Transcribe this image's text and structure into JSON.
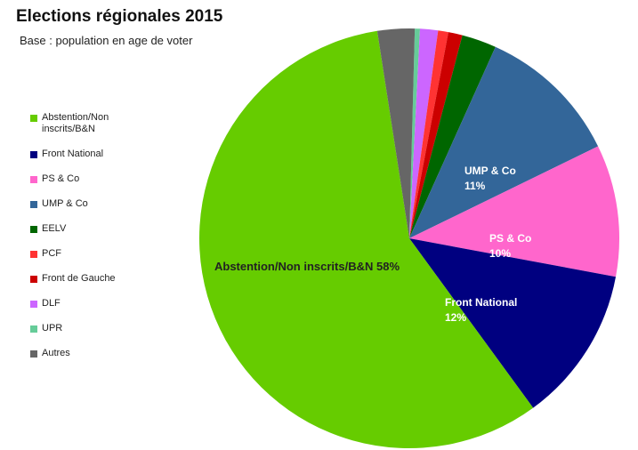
{
  "chart_data": {
    "type": "pie",
    "title": "Elections régionales 2015",
    "subtitle": "Base : population en age de voter",
    "slices": [
      {
        "name": "Abstention/Non inscrits/B&N",
        "legend_label": "Abstention/Non inscrits/B&N",
        "value": 58.4,
        "color": "#66cc00",
        "label_line1": "Abstention/Non inscrits/B&N 58%",
        "label_line2": "",
        "label_color": "#222222"
      },
      {
        "name": "Front National",
        "legend_label": "Front National",
        "value": 12.2,
        "color": "#000080",
        "label_line1": "Front National",
        "label_line2": "12%",
        "label_color": "#ffffff"
      },
      {
        "name": "PS & Co",
        "legend_label": "PS & Co",
        "value": 10.3,
        "color": "#ff66cc",
        "label_line1": "PS & Co",
        "label_line2": "10%",
        "label_color": "#ffffff"
      },
      {
        "name": "UMP & Co",
        "legend_label": "UMP & Co",
        "value": 11.2,
        "color": "#336699",
        "label_line1": "UMP & Co",
        "label_line2": "11%",
        "label_color": "#ffffff"
      },
      {
        "name": "EELV",
        "legend_label": "EELV",
        "value": 2.7,
        "color": "#006600",
        "label_line1": "",
        "label_line2": "",
        "label_color": "#ffffff"
      },
      {
        "name": "PCF",
        "legend_label": "PCF",
        "value": 0.8,
        "color": "#ff3333",
        "label_line1": "",
        "label_line2": "",
        "label_color": "#ffffff"
      },
      {
        "name": "Front de Gauche",
        "legend_label": "Front de Gauche",
        "value": 1.1,
        "color": "#cc0000",
        "label_line1": "",
        "label_line2": "",
        "label_color": "#ffffff"
      },
      {
        "name": "DLF",
        "legend_label": "DLF",
        "value": 1.4,
        "color": "#cc66ff",
        "label_line1": "",
        "label_line2": "",
        "label_color": "#ffffff"
      },
      {
        "name": "UPR",
        "legend_label": "UPR",
        "value": 0.4,
        "color": "#66cc99",
        "label_line1": "",
        "label_line2": "",
        "label_color": "#ffffff"
      },
      {
        "name": "Autres",
        "legend_label": "Autres",
        "value": 2.9,
        "color": "#666666",
        "label_line1": "",
        "label_line2": "",
        "label_color": "#ffffff"
      }
    ],
    "legend_placement": "left"
  }
}
